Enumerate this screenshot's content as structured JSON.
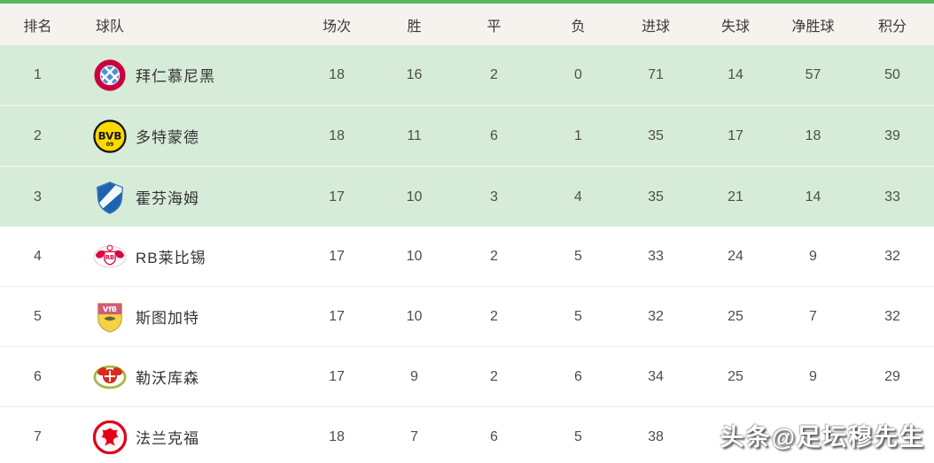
{
  "meta": {
    "accent_green_line": "#5bb75b",
    "header_bg": "#f6f3ee",
    "highlight_row_bg": "#d7ebd9",
    "watermark_text": "头条@足坛穆先生"
  },
  "table": {
    "headers": [
      "排名",
      "球队",
      "场次",
      "胜",
      "平",
      "负",
      "进球",
      "失球",
      "净胜球",
      "积分"
    ],
    "header_keys": [
      "rank",
      "team",
      "played",
      "won",
      "drawn",
      "lost",
      "goals-for",
      "goals-against",
      "goal-diff",
      "points"
    ],
    "rows": [
      {
        "rank": "1",
        "team": "拜仁慕尼黑",
        "logo": "bayern-munich-crest",
        "stats": [
          "18",
          "16",
          "2",
          "0",
          "71",
          "14",
          "57",
          "50"
        ],
        "highlighted": true
      },
      {
        "rank": "2",
        "team": "多特蒙德",
        "logo": "dortmund-crest",
        "stats": [
          "18",
          "11",
          "6",
          "1",
          "35",
          "17",
          "18",
          "39"
        ],
        "highlighted": true
      },
      {
        "rank": "3",
        "team": "霍芬海姆",
        "logo": "hoffenheim-crest",
        "stats": [
          "17",
          "10",
          "3",
          "4",
          "35",
          "21",
          "14",
          "33"
        ],
        "highlighted": true
      },
      {
        "rank": "4",
        "team": "RB莱比锡",
        "logo": "rb-leipzig-crest",
        "stats": [
          "17",
          "10",
          "2",
          "5",
          "33",
          "24",
          "9",
          "32"
        ],
        "highlighted": false
      },
      {
        "rank": "5",
        "team": "斯图加特",
        "logo": "stuttgart-crest",
        "stats": [
          "17",
          "10",
          "2",
          "5",
          "32",
          "25",
          "7",
          "32"
        ],
        "highlighted": false
      },
      {
        "rank": "6",
        "team": "勒沃库森",
        "logo": "leverkusen-crest",
        "stats": [
          "17",
          "9",
          "2",
          "6",
          "34",
          "25",
          "9",
          "29"
        ],
        "highlighted": false
      },
      {
        "rank": "7",
        "team": "法兰克福",
        "logo": "frankfurt-crest",
        "stats": [
          "18",
          "7",
          "6",
          "5",
          "38",
          "",
          "",
          ""
        ],
        "highlighted": false
      }
    ]
  },
  "chart_data": {
    "type": "table",
    "title": "",
    "columns": [
      "排名",
      "球队",
      "场次",
      "胜",
      "平",
      "负",
      "进球",
      "失球",
      "净胜球",
      "积分"
    ],
    "rows": [
      [
        1,
        "拜仁慕尼黑",
        18,
        16,
        2,
        0,
        71,
        14,
        57,
        50
      ],
      [
        2,
        "多特蒙德",
        18,
        11,
        6,
        1,
        35,
        17,
        18,
        39
      ],
      [
        3,
        "霍芬海姆",
        17,
        10,
        3,
        4,
        35,
        21,
        14,
        33
      ],
      [
        4,
        "RB莱比锡",
        17,
        10,
        2,
        5,
        33,
        24,
        9,
        32
      ],
      [
        5,
        "斯图加特",
        17,
        10,
        2,
        5,
        32,
        25,
        7,
        32
      ],
      [
        6,
        "勒沃库森",
        17,
        9,
        2,
        6,
        34,
        25,
        9,
        29
      ],
      [
        7,
        "法兰克福",
        18,
        7,
        6,
        5,
        38,
        null,
        null,
        null
      ]
    ],
    "notes": "top 3 rows highlighted green; row 7 last three values hidden behind watermark"
  }
}
